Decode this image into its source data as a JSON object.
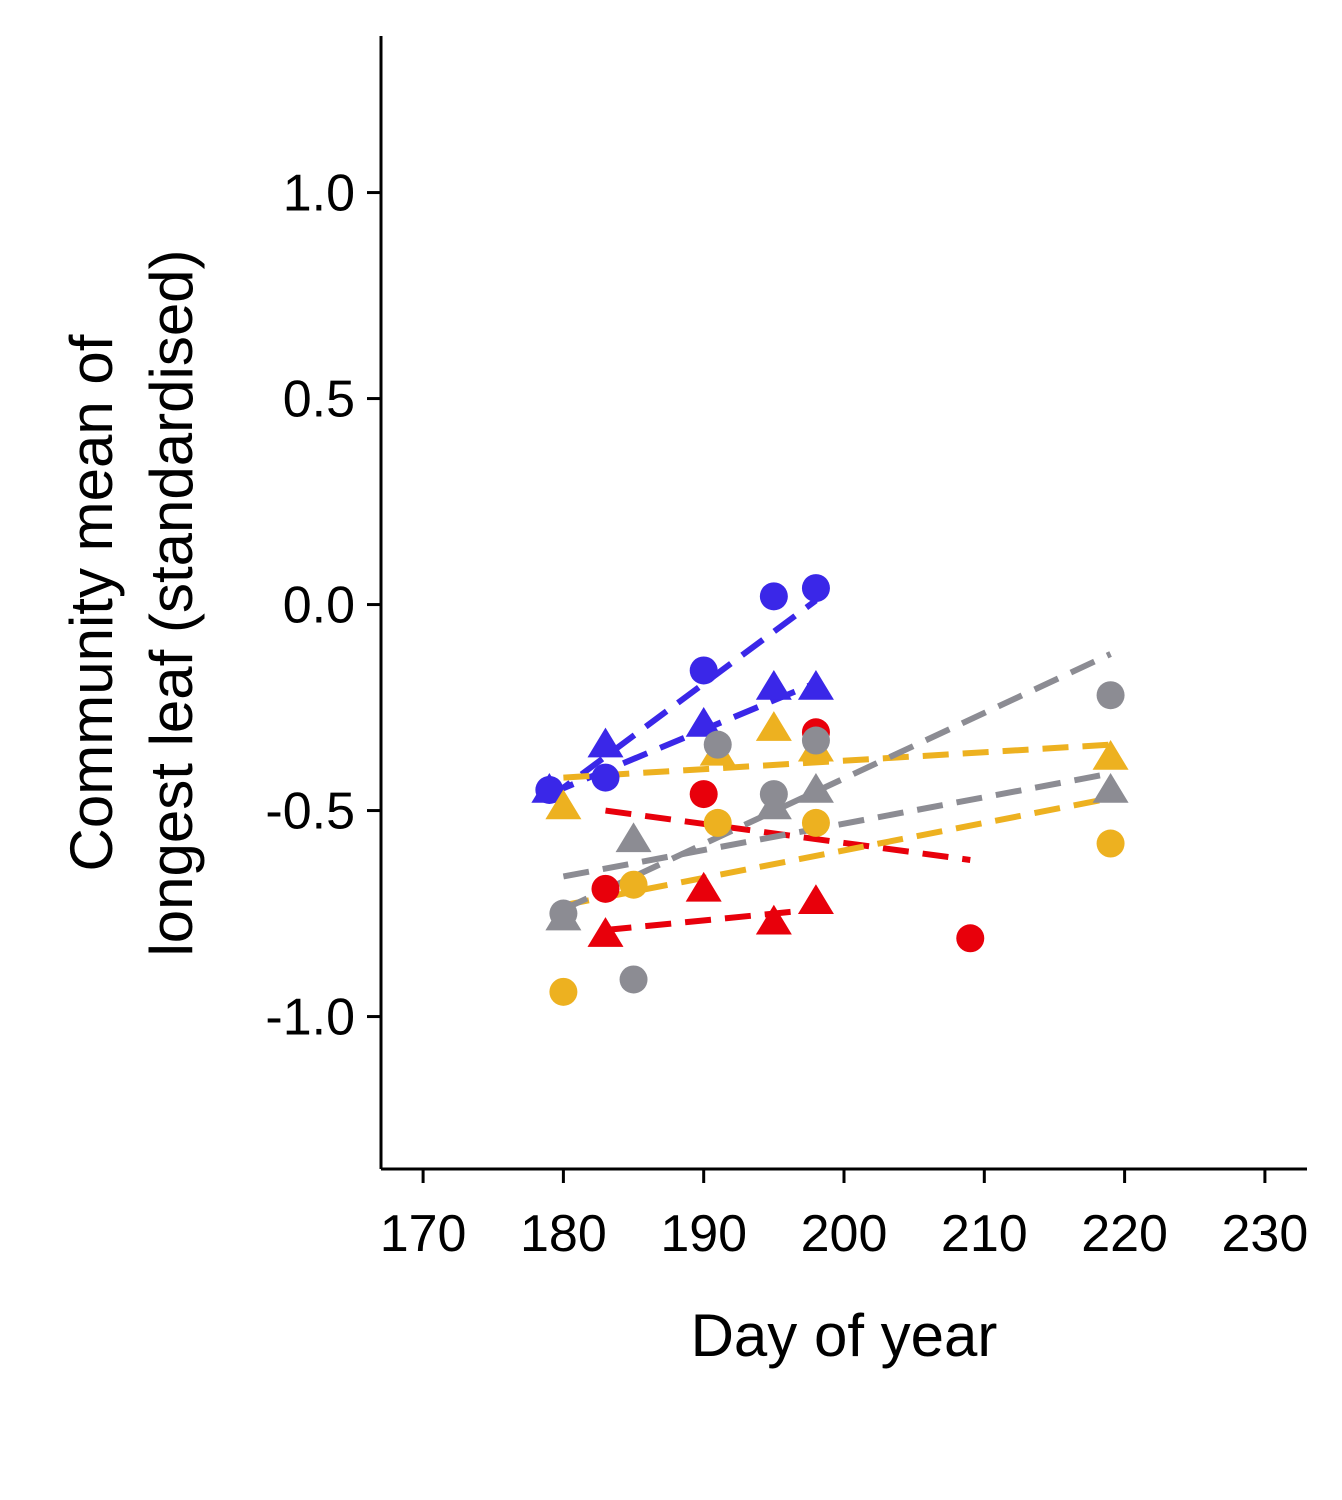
{
  "chart_data": {
    "type": "scatter",
    "title": "",
    "xlabel": "Day of year",
    "ylabel_lines": [
      "Community mean of",
      "longest leaf (standardised)"
    ],
    "xlim": [
      167,
      233
    ],
    "ylim": [
      -1.37,
      1.38
    ],
    "xticks": [
      170,
      180,
      190,
      200,
      210,
      220,
      230
    ],
    "xtick_labels": [
      "170",
      "180",
      "190",
      "200",
      "210",
      "220",
      "230"
    ],
    "yticks": [
      1.0,
      0.5,
      0.0,
      -0.5,
      -1.0
    ],
    "ytick_labels": [
      "1.0",
      "0.5",
      "0.0",
      "-0.5",
      "-1.0"
    ],
    "grid": false,
    "legend": "none",
    "series": [
      {
        "color": "#3a27e8",
        "marker": "circle",
        "points": [
          [
            179,
            -0.45
          ],
          [
            183,
            -0.42
          ],
          [
            190,
            -0.16
          ],
          [
            195,
            0.02
          ],
          [
            198,
            0.04
          ]
        ],
        "trend": [
          [
            179,
            -0.47
          ],
          [
            198,
            0.01
          ]
        ]
      },
      {
        "color": "#3a27e8",
        "marker": "triangle",
        "points": [
          [
            179,
            -0.45
          ],
          [
            183,
            -0.34
          ],
          [
            190,
            -0.29
          ],
          [
            195,
            -0.2
          ],
          [
            198,
            -0.2
          ]
        ],
        "trend": [
          [
            179,
            -0.46
          ],
          [
            198,
            -0.19
          ]
        ]
      },
      {
        "color": "#e8000b",
        "marker": "circle",
        "points": [
          [
            183,
            -0.69
          ],
          [
            190,
            -0.46
          ],
          [
            198,
            -0.31
          ],
          [
            209,
            -0.81
          ]
        ],
        "trend": [
          [
            183,
            -0.5
          ],
          [
            209,
            -0.62
          ]
        ]
      },
      {
        "color": "#e8000b",
        "marker": "triangle",
        "points": [
          [
            183,
            -0.8
          ],
          [
            190,
            -0.69
          ],
          [
            195,
            -0.77
          ],
          [
            198,
            -0.72
          ]
        ],
        "trend": [
          [
            183,
            -0.79
          ],
          [
            198,
            -0.74
          ]
        ]
      },
      {
        "color": "#edb120",
        "marker": "circle",
        "points": [
          [
            180,
            -0.94
          ],
          [
            185,
            -0.68
          ],
          [
            191,
            -0.53
          ],
          [
            198,
            -0.53
          ],
          [
            219,
            -0.58
          ]
        ],
        "trend": [
          [
            180,
            -0.73
          ],
          [
            219,
            -0.47
          ]
        ]
      },
      {
        "color": "#edb120",
        "marker": "triangle",
        "points": [
          [
            180,
            -0.49
          ],
          [
            191,
            -0.36
          ],
          [
            195,
            -0.3
          ],
          [
            198,
            -0.35
          ],
          [
            219,
            -0.37
          ]
        ],
        "trend": [
          [
            180,
            -0.42
          ],
          [
            219,
            -0.34
          ]
        ]
      },
      {
        "color": "#8c8c93",
        "marker": "circle",
        "points": [
          [
            180,
            -0.75
          ],
          [
            185,
            -0.91
          ],
          [
            191,
            -0.34
          ],
          [
            195,
            -0.46
          ],
          [
            198,
            -0.33
          ],
          [
            219,
            -0.22
          ]
        ],
        "trend": [
          [
            180,
            -0.74
          ],
          [
            219,
            -0.12
          ]
        ]
      },
      {
        "color": "#8c8c93",
        "marker": "triangle",
        "points": [
          [
            180,
            -0.76
          ],
          [
            185,
            -0.57
          ],
          [
            195,
            -0.49
          ],
          [
            198,
            -0.45
          ],
          [
            219,
            -0.45
          ]
        ],
        "trend": [
          [
            180,
            -0.66
          ],
          [
            219,
            -0.41
          ]
        ]
      }
    ]
  }
}
